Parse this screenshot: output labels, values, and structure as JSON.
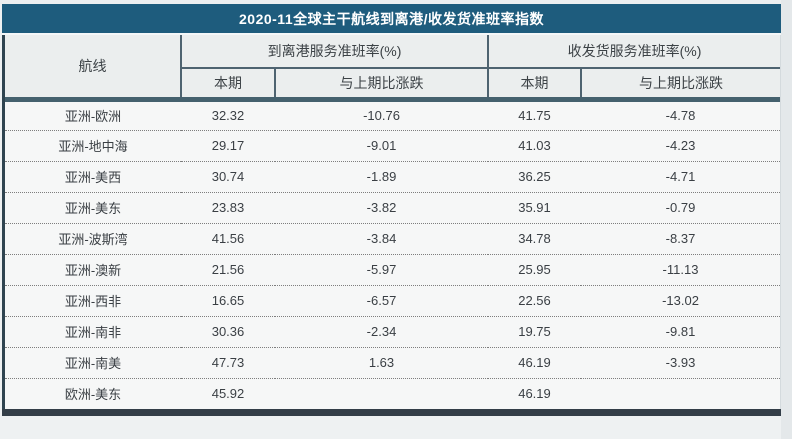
{
  "page": {
    "title": "2020-11全球主干航线到离港/收发货准班率指数"
  },
  "table": {
    "route_header": "航线",
    "group_headers": [
      "到离港服务准班率(%)",
      "收发货服务准班率(%)"
    ],
    "sub_headers": [
      "本期",
      "与上期比涨跌",
      "本期",
      "与上期比涨跌"
    ],
    "rows": [
      {
        "route": "亚洲-欧洲",
        "dep_current": "32.32",
        "dep_change": "-10.76",
        "cargo_current": "41.75",
        "cargo_change": "-4.78"
      },
      {
        "route": "亚洲-地中海",
        "dep_current": "29.17",
        "dep_change": "-9.01",
        "cargo_current": "41.03",
        "cargo_change": "-4.23"
      },
      {
        "route": "亚洲-美西",
        "dep_current": "30.74",
        "dep_change": "-1.89",
        "cargo_current": "36.25",
        "cargo_change": "-4.71"
      },
      {
        "route": "亚洲-美东",
        "dep_current": "23.83",
        "dep_change": "-3.82",
        "cargo_current": "35.91",
        "cargo_change": "-0.79"
      },
      {
        "route": "亚洲-波斯湾",
        "dep_current": "41.56",
        "dep_change": "-3.84",
        "cargo_current": "34.78",
        "cargo_change": "-8.37"
      },
      {
        "route": "亚洲-澳新",
        "dep_current": "21.56",
        "dep_change": "-5.97",
        "cargo_current": "25.95",
        "cargo_change": "-11.13"
      },
      {
        "route": "亚洲-西非",
        "dep_current": "16.65",
        "dep_change": "-6.57",
        "cargo_current": "22.56",
        "cargo_change": "-13.02"
      },
      {
        "route": "亚洲-南非",
        "dep_current": "30.36",
        "dep_change": "-2.34",
        "cargo_current": "19.75",
        "cargo_change": "-9.81"
      },
      {
        "route": "亚洲-南美",
        "dep_current": "47.73",
        "dep_change": "1.63",
        "cargo_current": "46.19",
        "cargo_change": "-3.93"
      },
      {
        "route": "欧洲-美东",
        "dep_current": "45.92",
        "dep_change": "",
        "cargo_current": "46.19",
        "cargo_change": ""
      }
    ]
  },
  "colors": {
    "title_bar": "#1E5C7D",
    "header_bg": "#EBEEEE",
    "header_border": "#4E6370",
    "separator_bar": "#45616E",
    "bottom_bar": "#333E48",
    "row_bg": "#F6F7F7",
    "body_text": "#3A3F44"
  },
  "chart_data": {
    "type": "table",
    "title": "2020-11全球主干航线到离港/收发货准班率指数",
    "columns": [
      "航线",
      "到离港服务准班率(%) 本期",
      "到离港服务准班率(%) 与上期比涨跌",
      "收发货服务准班率(%) 本期",
      "收发货服务准班率(%) 与上期比涨跌"
    ],
    "rows": [
      [
        "亚洲-欧洲",
        32.32,
        -10.76,
        41.75,
        -4.78
      ],
      [
        "亚洲-地中海",
        29.17,
        -9.01,
        41.03,
        -4.23
      ],
      [
        "亚洲-美西",
        30.74,
        -1.89,
        36.25,
        -4.71
      ],
      [
        "亚洲-美东",
        23.83,
        -3.82,
        35.91,
        -0.79
      ],
      [
        "亚洲-波斯湾",
        41.56,
        -3.84,
        34.78,
        -8.37
      ],
      [
        "亚洲-澳新",
        21.56,
        -5.97,
        25.95,
        -11.13
      ],
      [
        "亚洲-西非",
        16.65,
        -6.57,
        22.56,
        -13.02
      ],
      [
        "亚洲-南非",
        30.36,
        -2.34,
        19.75,
        -9.81
      ],
      [
        "亚洲-南美",
        47.73,
        1.63,
        46.19,
        -3.93
      ],
      [
        "欧洲-美东",
        45.92,
        null,
        46.19,
        null
      ]
    ]
  }
}
